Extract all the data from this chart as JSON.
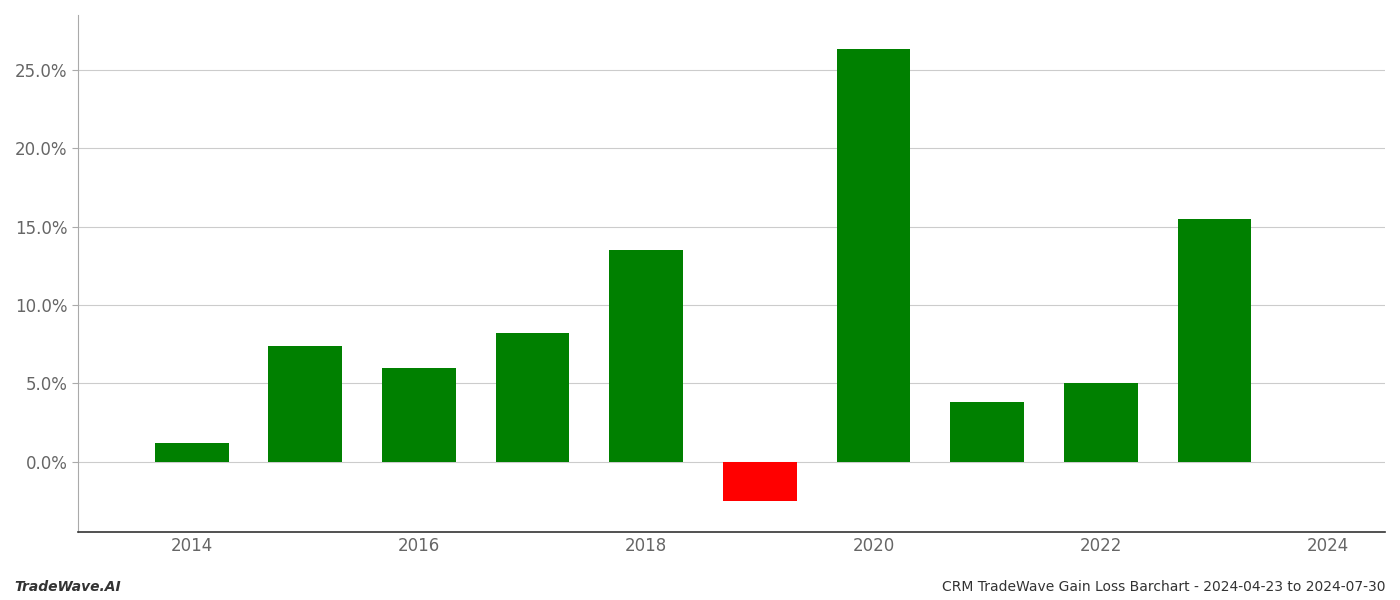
{
  "years": [
    2014,
    2015,
    2016,
    2017,
    2018,
    2019,
    2020,
    2021,
    2022,
    2023
  ],
  "values": [
    0.012,
    0.074,
    0.06,
    0.082,
    0.135,
    -0.025,
    0.263,
    0.038,
    0.05,
    0.155
  ],
  "colors": [
    "#008000",
    "#008000",
    "#008000",
    "#008000",
    "#008000",
    "#ff0000",
    "#008000",
    "#008000",
    "#008000",
    "#008000"
  ],
  "title": "CRM TradeWave Gain Loss Barchart - 2024-04-23 to 2024-07-30",
  "watermark": "TradeWave.AI",
  "ylim_min": -0.045,
  "ylim_max": 0.285,
  "yticks": [
    0.0,
    0.05,
    0.1,
    0.15,
    0.2,
    0.25
  ],
  "xticks": [
    2014,
    2016,
    2018,
    2020,
    2022,
    2024
  ],
  "background_color": "#ffffff",
  "grid_color": "#cccccc",
  "bar_width": 0.65
}
